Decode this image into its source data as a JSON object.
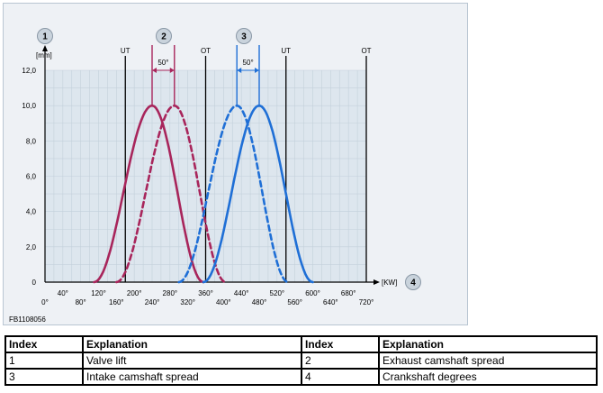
{
  "figure_code": "FB1108056",
  "chart_data": {
    "type": "line",
    "title": "",
    "xlabel": "[KW]",
    "ylabel": "[mm]",
    "xlim": [
      0,
      720
    ],
    "ylim": [
      0,
      12
    ],
    "x_ticks": [
      "0°",
      "40°",
      "80°",
      "120°",
      "160°",
      "200°",
      "240°",
      "280°",
      "320°",
      "360°",
      "400°",
      "440°",
      "480°",
      "520°",
      "560°",
      "600°",
      "640°",
      "680°",
      "720°"
    ],
    "y_ticks": [
      "0",
      "2,0",
      "4,0",
      "6,0",
      "8,0",
      "10,0",
      "12,0"
    ],
    "grid": true,
    "markers": [
      {
        "label": "UT",
        "x": 180
      },
      {
        "label": "OT",
        "x": 360
      },
      {
        "label": "UT",
        "x": 540
      },
      {
        "label": "OT",
        "x": 720
      }
    ],
    "spreads": [
      {
        "label": "50°",
        "color": "#a8255b",
        "x_from": 240,
        "x_to": 290
      },
      {
        "label": "50°",
        "color": "#1f6fd6",
        "x_from": 430,
        "x_to": 480
      }
    ],
    "badges": [
      {
        "text": "1",
        "target": "y-axis"
      },
      {
        "text": "2",
        "target": "exhaust-spread"
      },
      {
        "text": "3",
        "target": "intake-spread"
      },
      {
        "text": "4",
        "target": "x-axis"
      }
    ],
    "series": [
      {
        "color": "#a8255b",
        "dashed": false,
        "start": 110,
        "peak": 240,
        "end": 355,
        "max": 10.0
      },
      {
        "color": "#a8255b",
        "dashed": true,
        "start": 160,
        "peak": 290,
        "end": 405,
        "max": 10.0
      },
      {
        "color": "#1f6fd6",
        "dashed": true,
        "start": 300,
        "peak": 430,
        "end": 545,
        "max": 10.0
      },
      {
        "color": "#1f6fd6",
        "dashed": false,
        "start": 355,
        "peak": 480,
        "end": 600,
        "max": 10.0
      }
    ]
  },
  "legend": {
    "headers": [
      "Index",
      "Explanation",
      "Index",
      "Explanation"
    ],
    "rows": [
      [
        "1",
        "Valve lift",
        "2",
        "Exhaust camshaft spread"
      ],
      [
        "3",
        "Intake camshaft spread",
        "4",
        "Crankshaft degrees"
      ]
    ]
  }
}
